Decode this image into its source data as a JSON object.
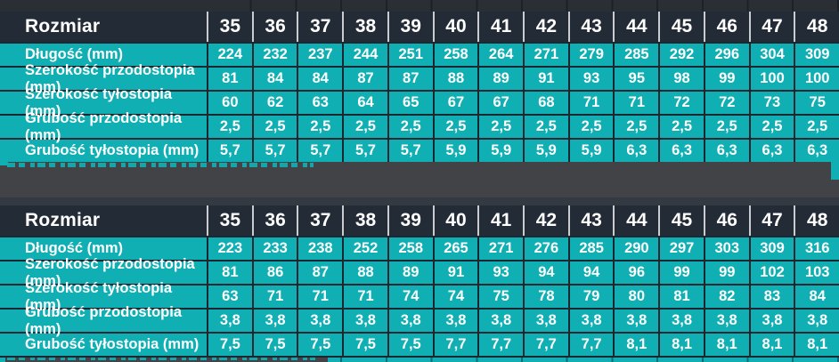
{
  "colors": {
    "teal": "#0FAFB4",
    "header_bg": "#232B36",
    "cell_border": "#1D2731",
    "header_separator": "#C9CDD1",
    "top_strip": "#2A2F35",
    "gap_band": "#414347",
    "gap_band_dark": "#343A41",
    "text": "#FFFFFF"
  },
  "chart_data": [
    {
      "type": "table",
      "header_label": "Rozmiar",
      "sizes": [
        "35",
        "36",
        "37",
        "38",
        "39",
        "40",
        "41",
        "42",
        "43",
        "44",
        "45",
        "46",
        "47",
        "48"
      ],
      "rows": [
        {
          "label": "Długość (mm)",
          "values": [
            "224",
            "232",
            "237",
            "244",
            "251",
            "258",
            "264",
            "271",
            "279",
            "285",
            "292",
            "296",
            "304",
            "309"
          ]
        },
        {
          "label": "Szerokość przodostopia (mm)",
          "values": [
            "81",
            "84",
            "84",
            "87",
            "87",
            "88",
            "89",
            "91",
            "93",
            "95",
            "98",
            "99",
            "100",
            "100"
          ]
        },
        {
          "label": "Szerokość tyłostopia (mm)",
          "values": [
            "60",
            "62",
            "63",
            "64",
            "65",
            "67",
            "67",
            "68",
            "71",
            "71",
            "72",
            "72",
            "73",
            "75"
          ]
        },
        {
          "label": "Grubość przodostopia (mm)",
          "values": [
            "2,5",
            "2,5",
            "2,5",
            "2,5",
            "2,5",
            "2,5",
            "2,5",
            "2,5",
            "2,5",
            "2,5",
            "2,5",
            "2,5",
            "2,5",
            "2,5"
          ]
        },
        {
          "label": "Grubość tyłostopia (mm)",
          "values": [
            "5,7",
            "5,7",
            "5,7",
            "5,7",
            "5,7",
            "5,9",
            "5,9",
            "5,9",
            "5,9",
            "6,3",
            "6,3",
            "6,3",
            "6,3",
            "6,3"
          ]
        }
      ]
    },
    {
      "type": "table",
      "header_label": "Rozmiar",
      "sizes": [
        "35",
        "36",
        "37",
        "38",
        "39",
        "40",
        "41",
        "42",
        "43",
        "44",
        "45",
        "46",
        "47",
        "48"
      ],
      "rows": [
        {
          "label": "Długość (mm)",
          "values": [
            "223",
            "233",
            "238",
            "252",
            "258",
            "265",
            "271",
            "276",
            "285",
            "290",
            "297",
            "303",
            "309",
            "316"
          ]
        },
        {
          "label": "Szerokość przodostopia (mm)",
          "values": [
            "81",
            "86",
            "87",
            "88",
            "89",
            "91",
            "93",
            "94",
            "94",
            "96",
            "99",
            "99",
            "102",
            "103"
          ]
        },
        {
          "label": "Szerokość tyłostopia (mm)",
          "values": [
            "63",
            "71",
            "71",
            "71",
            "74",
            "74",
            "75",
            "78",
            "79",
            "80",
            "81",
            "82",
            "83",
            "84"
          ]
        },
        {
          "label": "Grubość przodostopia (mm)",
          "values": [
            "3,8",
            "3,8",
            "3,8",
            "3,8",
            "3,8",
            "3,8",
            "3,8",
            "3,8",
            "3,8",
            "3,8",
            "3,8",
            "3,8",
            "3,8",
            "3,8"
          ]
        },
        {
          "label": "Grubość tyłostopia (mm)",
          "values": [
            "7,5",
            "7,5",
            "7,5",
            "7,5",
            "7,5",
            "7,7",
            "7,7",
            "7,7",
            "7,7",
            "8,1",
            "8,1",
            "8,1",
            "8,1",
            "8,1"
          ]
        }
      ]
    }
  ]
}
